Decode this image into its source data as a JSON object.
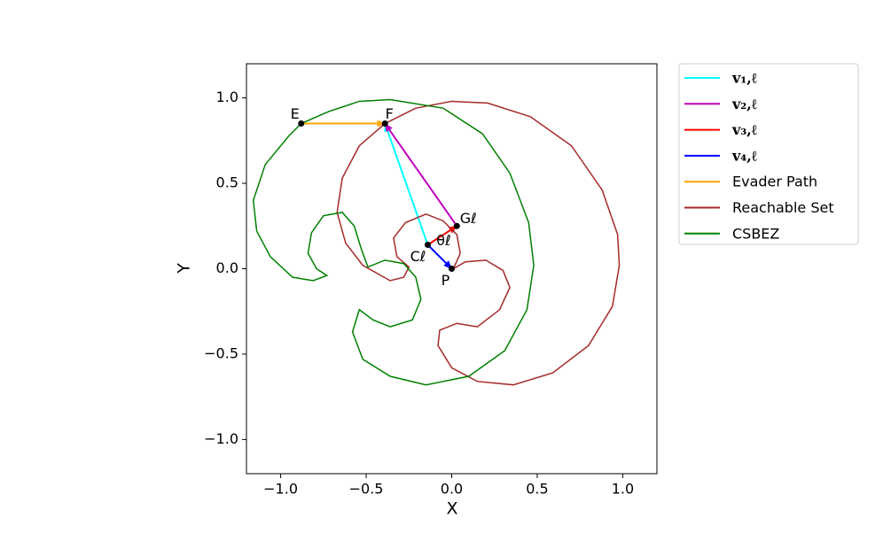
{
  "chart_data": {
    "type": "line",
    "xlabel": "X",
    "ylabel": "Y",
    "xlim": [
      -1.2,
      1.2
    ],
    "ylim": [
      -1.2,
      1.2
    ],
    "xticks": [
      {
        "value": -1,
        "label": "−1.0"
      },
      {
        "value": -0.5,
        "label": "−0.5"
      },
      {
        "value": 0,
        "label": "0.0"
      },
      0.5,
      {
        "value": 1,
        "label": "1.0"
      }
    ],
    "yticks": [
      {
        "value": -1,
        "label": "−1.0"
      },
      {
        "value": -0.5,
        "label": "−0.5"
      },
      {
        "value": 0,
        "label": "0.0"
      },
      0.5,
      {
        "value": 1,
        "label": "1.0"
      }
    ],
    "grid": false,
    "legend": "outside upper right",
    "series": [
      {
        "name": "v₁,ℓ",
        "color": "#00ffff",
        "arrow": true,
        "x": [
          -0.14,
          -0.39
        ],
        "y": [
          0.14,
          0.85
        ]
      },
      {
        "name": "v₂,ℓ",
        "color": "#bf00bf",
        "arrow": true,
        "x": [
          0.03,
          -0.39
        ],
        "y": [
          0.25,
          0.85
        ]
      },
      {
        "name": "v₃,ℓ",
        "color": "#ff0000",
        "arrow": true,
        "x": [
          -0.14,
          0.03
        ],
        "y": [
          0.14,
          0.25
        ]
      },
      {
        "name": "v₄,ℓ",
        "color": "#0000ff",
        "arrow": true,
        "x": [
          -0.14,
          0.0
        ],
        "y": [
          0.14,
          0.0
        ]
      },
      {
        "name": "Evader Path",
        "color": "#ffa500",
        "arrow": true,
        "x": [
          -0.88,
          -0.39
        ],
        "y": [
          0.85,
          0.85
        ]
      },
      {
        "name": "Reachable Set",
        "color": "#a52a2a",
        "arrow": false,
        "x": [
          -0.39,
          -0.21,
          0,
          0.21,
          0.46,
          0.7,
          0.88,
          0.97,
          0.98,
          0.94,
          0.8,
          0.59,
          0.36,
          0.15,
          0,
          -0.08,
          -0.07,
          0.03,
          0.15,
          0.28,
          0.34,
          0.3,
          0.2,
          0.08,
          0.01,
          0.05,
          0.03,
          -0.05,
          -0.15,
          -0.27,
          -0.34,
          -0.32,
          -0.25,
          -0.28,
          -0.36,
          -0.52,
          -0.62,
          -0.67,
          -0.64,
          -0.54,
          -0.39
        ],
        "y": [
          0.85,
          0.94,
          0.98,
          0.97,
          0.89,
          0.72,
          0.46,
          0.2,
          0.02,
          -0.22,
          -0.45,
          -0.61,
          -0.68,
          -0.66,
          -0.58,
          -0.45,
          -0.36,
          -0.32,
          -0.34,
          -0.24,
          -0.11,
          -0.01,
          0.05,
          0.04,
          0.0,
          0.09,
          0.2,
          0.28,
          0.32,
          0.27,
          0.18,
          0.07,
          0.01,
          -0.05,
          -0.07,
          0.02,
          0.15,
          0.33,
          0.53,
          0.72,
          0.85
        ]
      },
      {
        "name": "CSBEZ",
        "color": "#008000",
        "arrow": false,
        "x": [
          -0.36,
          -0.05,
          0.18,
          0.34,
          0.45,
          0.48,
          0.44,
          0.31,
          0.1,
          -0.15,
          -0.36,
          -0.52,
          -0.58,
          -0.54,
          -0.46,
          -0.36,
          -0.23,
          -0.18,
          -0.21,
          -0.28,
          -0.39,
          -0.49,
          -0.53,
          -0.57,
          -0.64,
          -0.75,
          -0.82,
          -0.84,
          -0.79,
          -0.73,
          -0.81,
          -0.93,
          -1.06,
          -1.14,
          -1.16,
          -1.09,
          -0.95,
          -0.88,
          -0.72,
          -0.54,
          -0.36
        ],
        "y": [
          0.99,
          0.94,
          0.79,
          0.56,
          0.27,
          0.02,
          -0.24,
          -0.48,
          -0.63,
          -0.68,
          -0.63,
          -0.53,
          -0.37,
          -0.24,
          -0.3,
          -0.34,
          -0.3,
          -0.18,
          -0.05,
          0.03,
          0.05,
          0.01,
          0.12,
          0.25,
          0.33,
          0.31,
          0.21,
          0.09,
          0.0,
          -0.04,
          -0.07,
          -0.05,
          0.07,
          0.22,
          0.4,
          0.61,
          0.78,
          0.85,
          0.92,
          0.98,
          0.99
        ]
      }
    ],
    "points": [
      {
        "label": "E",
        "x": -0.88,
        "y": 0.85
      },
      {
        "label": "F",
        "x": -0.39,
        "y": 0.85
      },
      {
        "label": "Gℓ",
        "x": 0.03,
        "y": 0.25
      },
      {
        "label": "Cℓ",
        "x": -0.14,
        "y": 0.14
      },
      {
        "label": "P",
        "x": 0.0,
        "y": 0.0
      }
    ],
    "angle_label": "θℓ"
  }
}
